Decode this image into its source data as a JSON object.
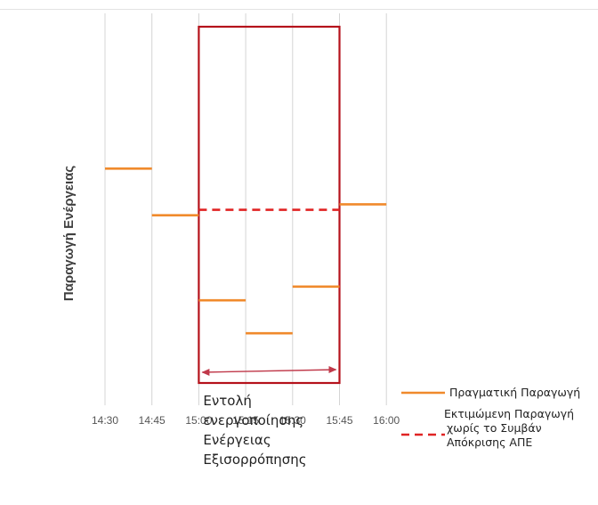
{
  "chart_data": {
    "type": "line",
    "title": "",
    "xlabel": "",
    "ylabel": "Παραγωγή Ενέργειας",
    "x_ticks": [
      "14:30",
      "14:45",
      "15:00",
      "15:15",
      "15:30",
      "15:45",
      "16:00"
    ],
    "grid": "vertical",
    "series": [
      {
        "name": "Πραγματική Παραγωγή",
        "style": "solid",
        "color": "#f08a2c",
        "segments": [
          {
            "x_start": "14:30",
            "x_end": "14:45",
            "y": 0.83
          },
          {
            "x_start": "14:45",
            "x_end": "15:00",
            "y": 0.66
          },
          {
            "x_start": "15:00",
            "x_end": "15:15",
            "y": 0.35
          },
          {
            "x_start": "15:15",
            "x_end": "15:30",
            "y": 0.23
          },
          {
            "x_start": "15:30",
            "x_end": "15:45",
            "y": 0.4
          },
          {
            "x_start": "15:45",
            "x_end": "16:00",
            "y": 0.7
          }
        ]
      },
      {
        "name": "Εκτιμώμενη Παραγωγή χωρίς το Συμβάν Απόκρισης ΑΠΕ",
        "name_lines": [
          "Εκτιμώμενη Παραγωγή",
          "χωρίς το Συμβάν",
          "Απόκρισης ΑΠΕ"
        ],
        "style": "dashed",
        "color": "#e02424",
        "segments": [
          {
            "x_start": "15:00",
            "x_end": "15:45",
            "y": 0.68
          }
        ]
      }
    ],
    "highlight": {
      "x_start": "15:00",
      "x_end": "15:45",
      "color": "#b5121b",
      "annotation_lines": [
        "Εντολή",
        "ενεργοποίησης",
        "Ενέργειας",
        "Εξισορρόπησης"
      ]
    },
    "legend_position": "bottom-right"
  }
}
